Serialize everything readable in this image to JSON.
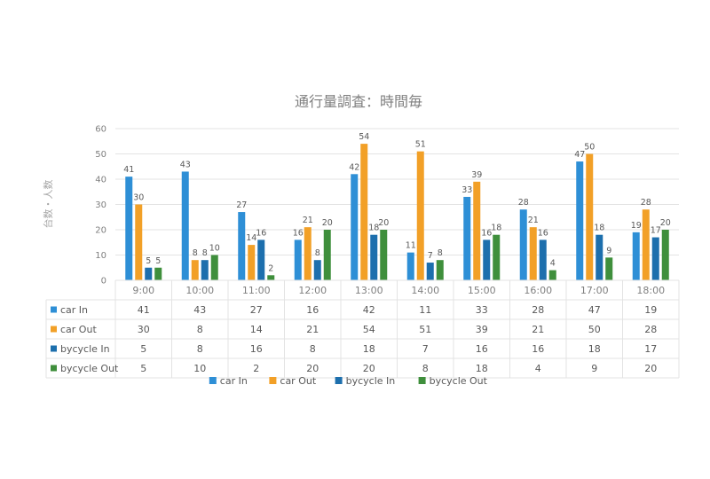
{
  "chart_data": {
    "type": "bar",
    "title": "通行量調査：時間毎",
    "ylabel": "台数・人数",
    "xlabel": "",
    "ylim": [
      0,
      60
    ],
    "yticks": [
      0,
      10,
      20,
      30,
      40,
      50,
      60
    ],
    "grid": true,
    "legend": "bottom",
    "data_table": true,
    "categories": [
      "9:00",
      "10:00",
      "11:00",
      "12:00",
      "13:00",
      "14:00",
      "15:00",
      "16:00",
      "17:00",
      "18:00"
    ],
    "series": [
      {
        "name": "car In",
        "color": "#2e8fd6",
        "values": [
          41,
          43,
          27,
          16,
          42,
          11,
          33,
          28,
          47,
          19
        ]
      },
      {
        "name": "car Out",
        "color": "#f2a027",
        "values": [
          30,
          8,
          14,
          21,
          54,
          51,
          39,
          21,
          50,
          28
        ]
      },
      {
        "name": "bycycle In",
        "color": "#1d6fad",
        "values": [
          5,
          8,
          16,
          8,
          18,
          7,
          16,
          16,
          18,
          17
        ]
      },
      {
        "name": "bycycle Out",
        "color": "#3f8f3c",
        "values": [
          5,
          10,
          2,
          20,
          20,
          8,
          18,
          4,
          9,
          20
        ]
      }
    ]
  }
}
